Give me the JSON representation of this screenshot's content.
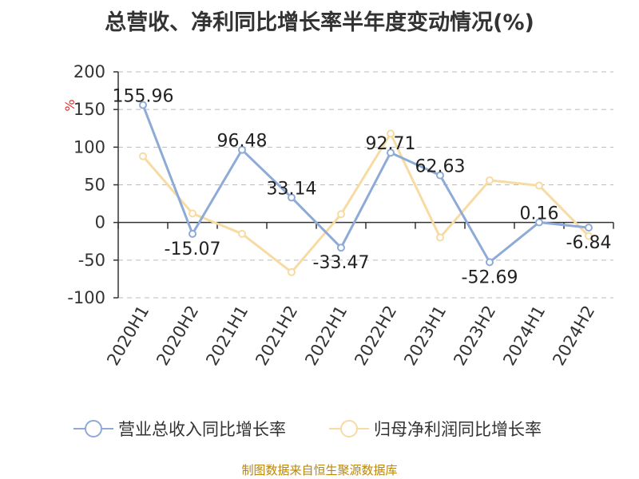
{
  "title": "总营收、净利同比增长率半年度变动情况(%)",
  "source": "制图数据来自恒生聚源数据库",
  "colors": {
    "revenue": "#8eaad6",
    "profit": "#f7dba3",
    "axis": "#333333",
    "grid": "#bbbbbb",
    "unit": "#e03030"
  },
  "chart_data": {
    "type": "line",
    "unit_label": "%",
    "categories": [
      "2020H1",
      "2020H2",
      "2021H1",
      "2021H2",
      "2022H1",
      "2022H2",
      "2023H1",
      "2023H2",
      "2024H1",
      "2024H2"
    ],
    "ylim": [
      -100,
      200
    ],
    "yticks": [
      200,
      150,
      100,
      50,
      0,
      -50,
      -100
    ],
    "grid": true,
    "legend_position": "bottom",
    "series": [
      {
        "name": "营业总收入同比增长率",
        "color": "#8eaad6",
        "values": [
          155.96,
          -15.07,
          96.48,
          33.14,
          -33.47,
          92.71,
          62.63,
          -52.69,
          0.16,
          -6.84
        ],
        "labels": [
          "155.96",
          "-15.07",
          "96.48",
          "33.14",
          "-33.47",
          "92.71",
          "62.63",
          "-52.69",
          "0.16",
          "-6.84"
        ]
      },
      {
        "name": "归母净利润同比增长率",
        "color": "#f7dba3",
        "values": [
          88,
          12,
          -15,
          -66,
          11,
          118,
          -20,
          56,
          49,
          -18
        ]
      }
    ]
  }
}
